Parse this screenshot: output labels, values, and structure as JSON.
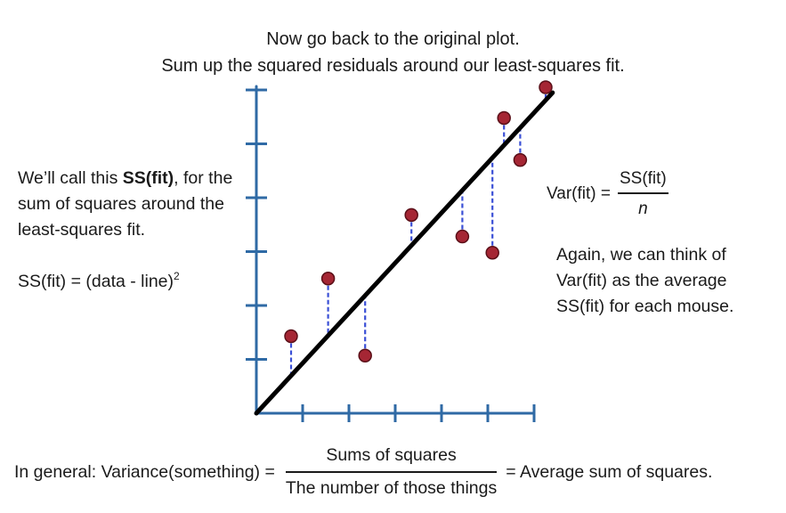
{
  "title": {
    "line1": "Now go back to the original plot.",
    "line2": "Sum up the squared residuals around our least-squares fit."
  },
  "left": {
    "text_before": "We’ll call this ",
    "text_bold": "SS(fit)",
    "text_after": ", for the sum of squares around the least-squares fit.",
    "formula": "SS(fit) = (data - line)",
    "formula_exponent": "2"
  },
  "var_formula": {
    "lhs": "Var(fit) =",
    "numerator": "SS(fit)",
    "denominator": "n"
  },
  "right_text": "Again, we can think of Var(fit) as the average SS(fit) for each mouse.",
  "bottom": {
    "lhs": "In general: Variance(something) =",
    "numerator": "Sums of squares",
    "denominator": "The number of those things",
    "rhs": "= Average sum of squares."
  },
  "colors": {
    "axis": "#2f6aa5",
    "point_fill": "#a52634",
    "point_stroke": "#5a0f18",
    "residual": "#3a4fd6",
    "fit_line": "#000000"
  },
  "chart_data": {
    "type": "scatter",
    "xlim": [
      0,
      6
    ],
    "ylim": [
      0,
      6
    ],
    "x_ticks": [
      1,
      2,
      3,
      4,
      5,
      6
    ],
    "y_ticks": [
      1,
      2,
      3,
      4,
      5,
      6
    ],
    "fit_line": {
      "x": [
        0,
        6.4
      ],
      "y": [
        0,
        5.95
      ]
    },
    "points": [
      {
        "x": 0.75,
        "y": 1.43
      },
      {
        "x": 1.55,
        "y": 2.5
      },
      {
        "x": 2.35,
        "y": 1.07
      },
      {
        "x": 3.35,
        "y": 3.68
      },
      {
        "x": 4.45,
        "y": 3.28
      },
      {
        "x": 5.1,
        "y": 2.98
      },
      {
        "x": 5.35,
        "y": 5.48
      },
      {
        "x": 5.7,
        "y": 4.7
      },
      {
        "x": 6.25,
        "y": 6.05
      }
    ]
  }
}
